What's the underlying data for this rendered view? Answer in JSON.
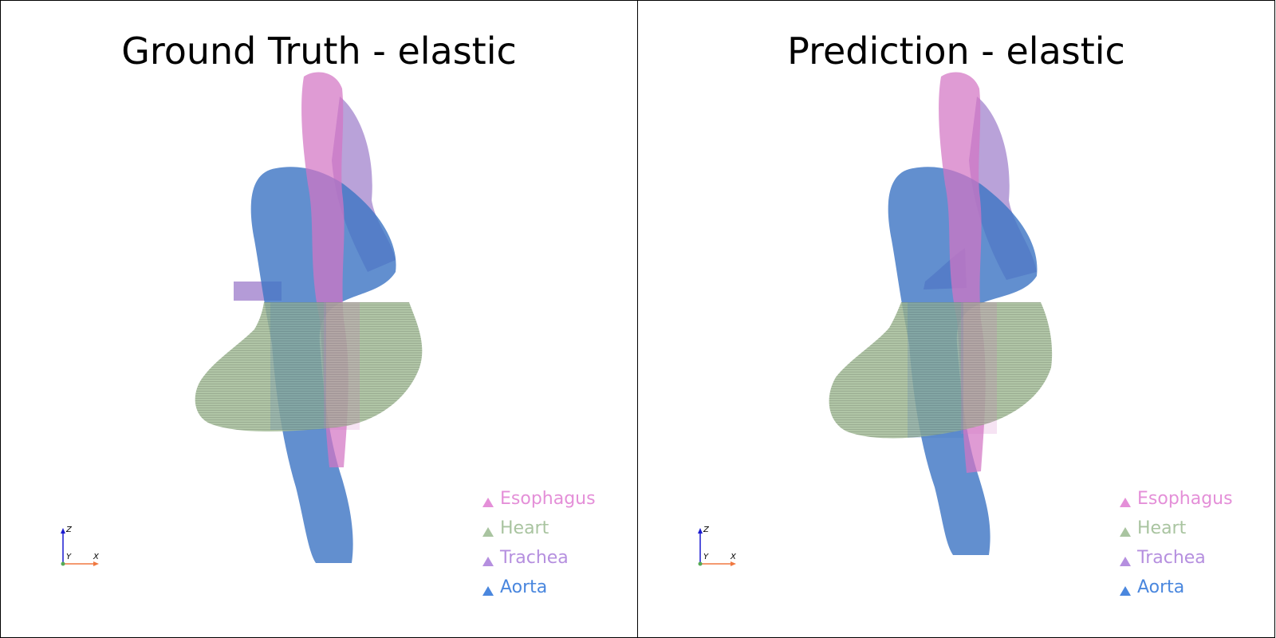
{
  "panels": [
    {
      "title": "Ground Truth - elastic",
      "legend": [
        {
          "label": "Esophagus",
          "color": "#e48fd8"
        },
        {
          "label": "Heart",
          "color": "#a9c4a0"
        },
        {
          "label": "Trachea",
          "color": "#b58fdf"
        },
        {
          "label": "Aorta",
          "color": "#4a87de"
        }
      ],
      "axes": {
        "z": "Z",
        "y": "Y",
        "x": "X"
      }
    },
    {
      "title": "Prediction - elastic",
      "legend": [
        {
          "label": "Esophagus",
          "color": "#e48fd8"
        },
        {
          "label": "Heart",
          "color": "#a9c4a0"
        },
        {
          "label": "Trachea",
          "color": "#b58fdf"
        },
        {
          "label": "Aorta",
          "color": "#4a87de"
        }
      ],
      "axes": {
        "z": "Z",
        "y": "Y",
        "x": "X"
      }
    }
  ],
  "colors": {
    "esophagus": "#d274c4",
    "heart": "#9fb892",
    "trachea": "#9b7ac9",
    "aorta": "#3f76c4",
    "axis_z": "#1a1ad0",
    "axis_x": "#f07840",
    "axis_y": "#55aa55"
  }
}
